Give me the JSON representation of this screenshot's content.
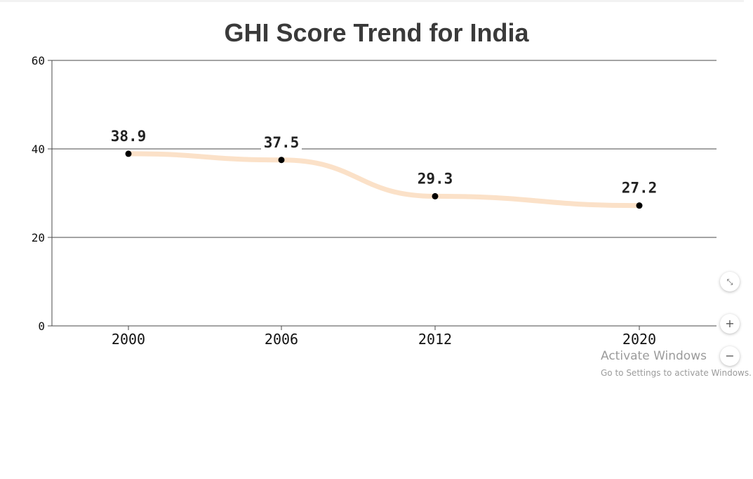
{
  "chart_data": {
    "type": "line",
    "title": "GHI Score Trend for India",
    "x": [
      "2000",
      "2006",
      "2012",
      "2020"
    ],
    "xlabel": "",
    "ylabel": "",
    "ylim": [
      0,
      60
    ],
    "yticks": [
      0,
      20,
      40,
      60
    ],
    "series": [
      {
        "values": [
          38.9,
          37.5,
          29.3,
          27.2
        ]
      }
    ],
    "data_labels": [
      "38.9",
      "37.5",
      "29.3",
      "27.2"
    ],
    "grid": true,
    "line_color": "#fbe1c8",
    "marker_color": "#000000",
    "grid_color": "#4a4a4a"
  },
  "controls": {
    "reset_icon": "collapse-icon",
    "zoom_in_label": "+",
    "zoom_out_label": "−"
  },
  "watermark": {
    "title": "Activate Windows",
    "subtitle": "Go to Settings to activate Windows."
  }
}
